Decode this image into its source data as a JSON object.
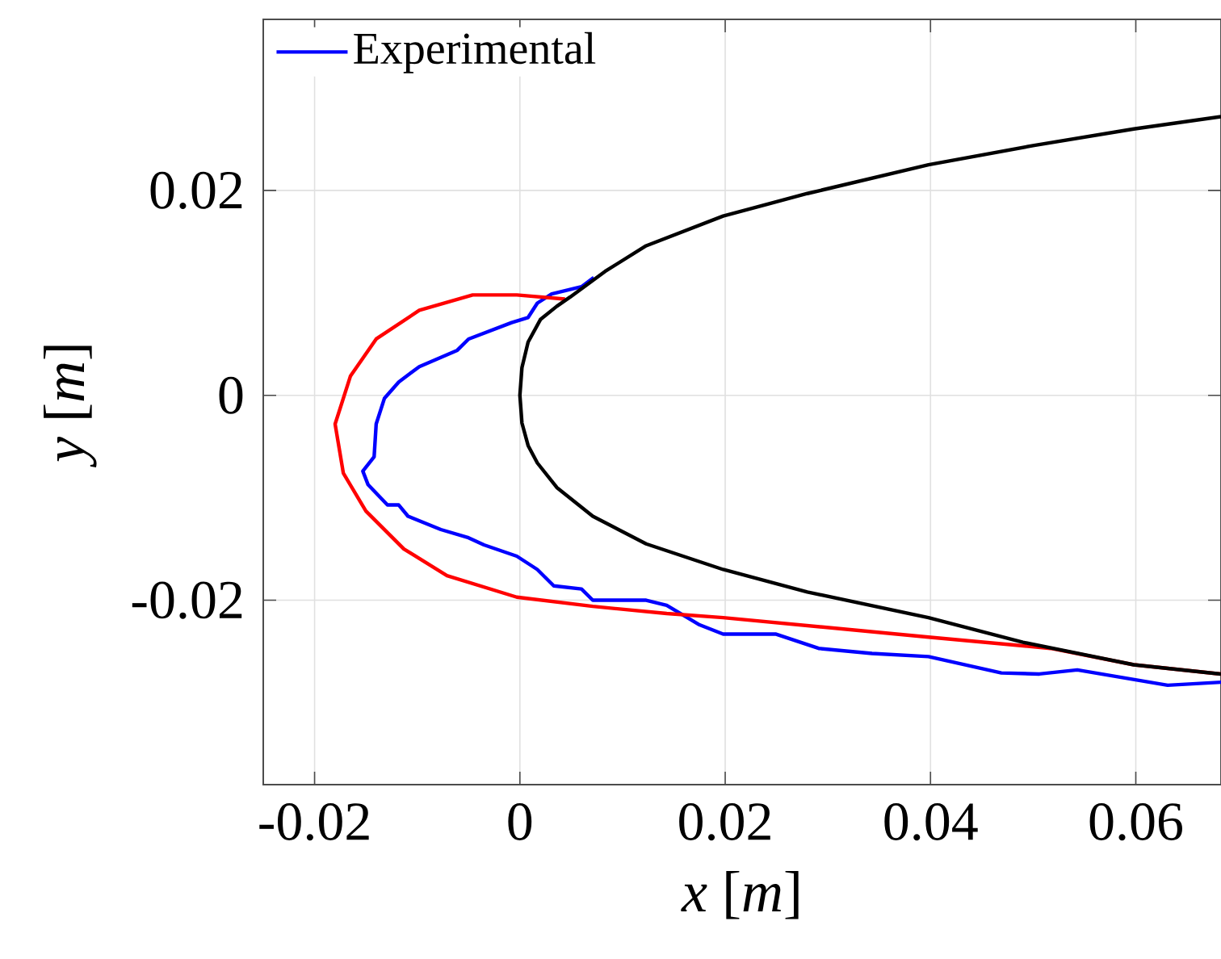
{
  "chart_data": {
    "type": "line",
    "xlabel": "*x* [*m*]",
    "ylabel": "*y* [*m*]",
    "xlim": [
      -0.025,
      0.0683
    ],
    "ylim": [
      -0.038,
      0.0367
    ],
    "xticks": [
      -0.02,
      0,
      0.02,
      0.04,
      0.06
    ],
    "yticks": [
      -0.02,
      0,
      0.02
    ],
    "grid": true,
    "legend": "top left",
    "line_style": "solid",
    "series": [
      {
        "name": "Experimental",
        "color": "#0000ff",
        "x": [
          0.0072,
          0.006,
          0.0031,
          0.0017,
          0.0008,
          -0.0008,
          -0.005,
          -0.0061,
          -0.0098,
          -0.0118,
          -0.0132,
          -0.014,
          -0.0142,
          -0.0153,
          -0.0148,
          -0.0129,
          -0.0118,
          -0.0109,
          -0.0077,
          -0.005,
          -0.0035,
          -0.0003,
          0.0017,
          0.0033,
          0.006,
          0.0071,
          0.0123,
          0.0143,
          0.0175,
          0.0198,
          0.0249,
          0.0291,
          0.0343,
          0.0398,
          0.0469,
          0.0506,
          0.0543,
          0.0631,
          0.0683
        ],
        "values": [
          0.0115,
          0.0106,
          0.0099,
          0.009,
          0.0076,
          0.0071,
          0.0055,
          0.0044,
          0.0028,
          0.0013,
          -0.0003,
          -0.0028,
          -0.006,
          -0.0074,
          -0.0087,
          -0.0107,
          -0.0107,
          -0.0118,
          -0.0131,
          -0.0139,
          -0.0146,
          -0.0157,
          -0.017,
          -0.0186,
          -0.0189,
          -0.02,
          -0.02,
          -0.0205,
          -0.0224,
          -0.0233,
          -0.0233,
          -0.0247,
          -0.0252,
          -0.0255,
          -0.0271,
          -0.0272,
          -0.0268,
          -0.0283,
          -0.028
        ]
      },
      {
        "color": "#ff0000",
        "x": [
          0.0044,
          -0.0003,
          -0.0046,
          -0.0098,
          -0.014,
          -0.0165,
          -0.018,
          -0.0172,
          -0.015,
          -0.0113,
          -0.0071,
          -0.0003,
          0.0071,
          0.0143,
          0.0198,
          0.0398,
          0.0517,
          0.0598,
          0.0683
        ],
        "values": [
          0.0094,
          0.0098,
          0.0098,
          0.0083,
          0.0055,
          0.0019,
          -0.0028,
          -0.0076,
          -0.0113,
          -0.015,
          -0.0176,
          -0.0197,
          -0.0206,
          -0.0213,
          -0.0217,
          -0.0236,
          -0.0247,
          -0.0263,
          -0.0272
        ]
      },
      {
        "color": "#000000",
        "x": [
          0.0683,
          0.0598,
          0.0501,
          0.0398,
          0.028,
          0.0198,
          0.0123,
          0.0083,
          0.0049,
          0.0036,
          0.002,
          0.0008,
          0.0002,
          0,
          0.0002,
          0.0008,
          0.0017,
          0.0036,
          0.0071,
          0.0123,
          0.0198,
          0.028,
          0.0398,
          0.049,
          0.0598,
          0.0683
        ],
        "values": [
          0.0272,
          0.026,
          0.0244,
          0.0225,
          0.0197,
          0.0175,
          0.0146,
          0.0121,
          0.0096,
          0.0087,
          0.0074,
          0.0052,
          0.0027,
          0,
          -0.0027,
          -0.0049,
          -0.0066,
          -0.009,
          -0.0118,
          -0.0145,
          -0.017,
          -0.0192,
          -0.0217,
          -0.0241,
          -0.0263,
          -0.0272
        ]
      }
    ]
  }
}
